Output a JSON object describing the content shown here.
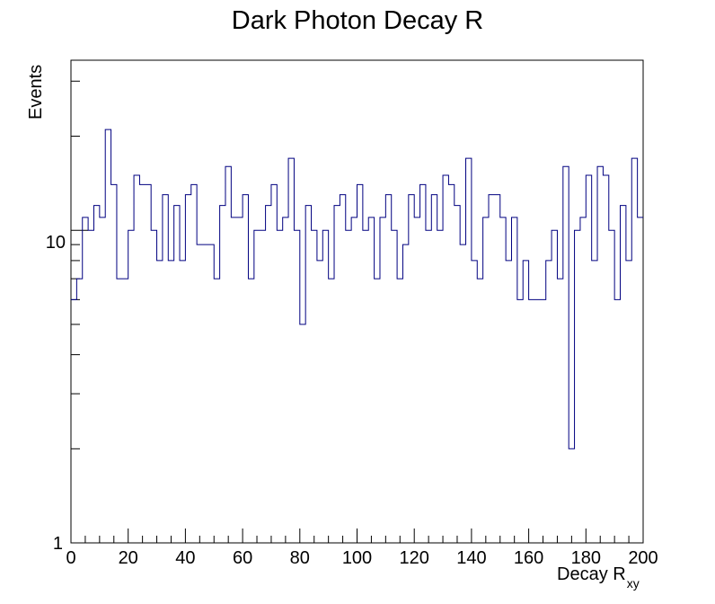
{
  "chart_data": {
    "type": "histogram",
    "title": "Dark Photon Decay R",
    "xlabel": "Decay R",
    "xlabel_subscript": "xy",
    "ylabel": "Events",
    "xlim": [
      0,
      200
    ],
    "ylim": [
      1,
      35
    ],
    "y_scale": "log",
    "bin_width": 2,
    "x_tick_labels": [
      "0",
      "20",
      "40",
      "60",
      "80",
      "100",
      "120",
      "140",
      "160",
      "180",
      "200"
    ],
    "y_tick_labels": [
      "1",
      "10"
    ],
    "grid": false,
    "legend": "none",
    "line_color": "#000080",
    "values": [
      6,
      7,
      11,
      10,
      12,
      11,
      21,
      14,
      7,
      7,
      10,
      15,
      14,
      14,
      10,
      8,
      13,
      8,
      12,
      8,
      13,
      14,
      9,
      9,
      9,
      7,
      12,
      16,
      11,
      11,
      13,
      7,
      10,
      10,
      12,
      14,
      10,
      11,
      17,
      10,
      5,
      12,
      10,
      8,
      10,
      7,
      12,
      13,
      10,
      11,
      14,
      10,
      11,
      7,
      11,
      13,
      10,
      7,
      9,
      13,
      11,
      14,
      10,
      13,
      10,
      15,
      14,
      12,
      9,
      17,
      8,
      7,
      11,
      13,
      13,
      11,
      8,
      11,
      6,
      8,
      6,
      6,
      6,
      8,
      10,
      7,
      16,
      2,
      10,
      11,
      15,
      8,
      16,
      15,
      10,
      6,
      12,
      8,
      17,
      11
    ]
  }
}
